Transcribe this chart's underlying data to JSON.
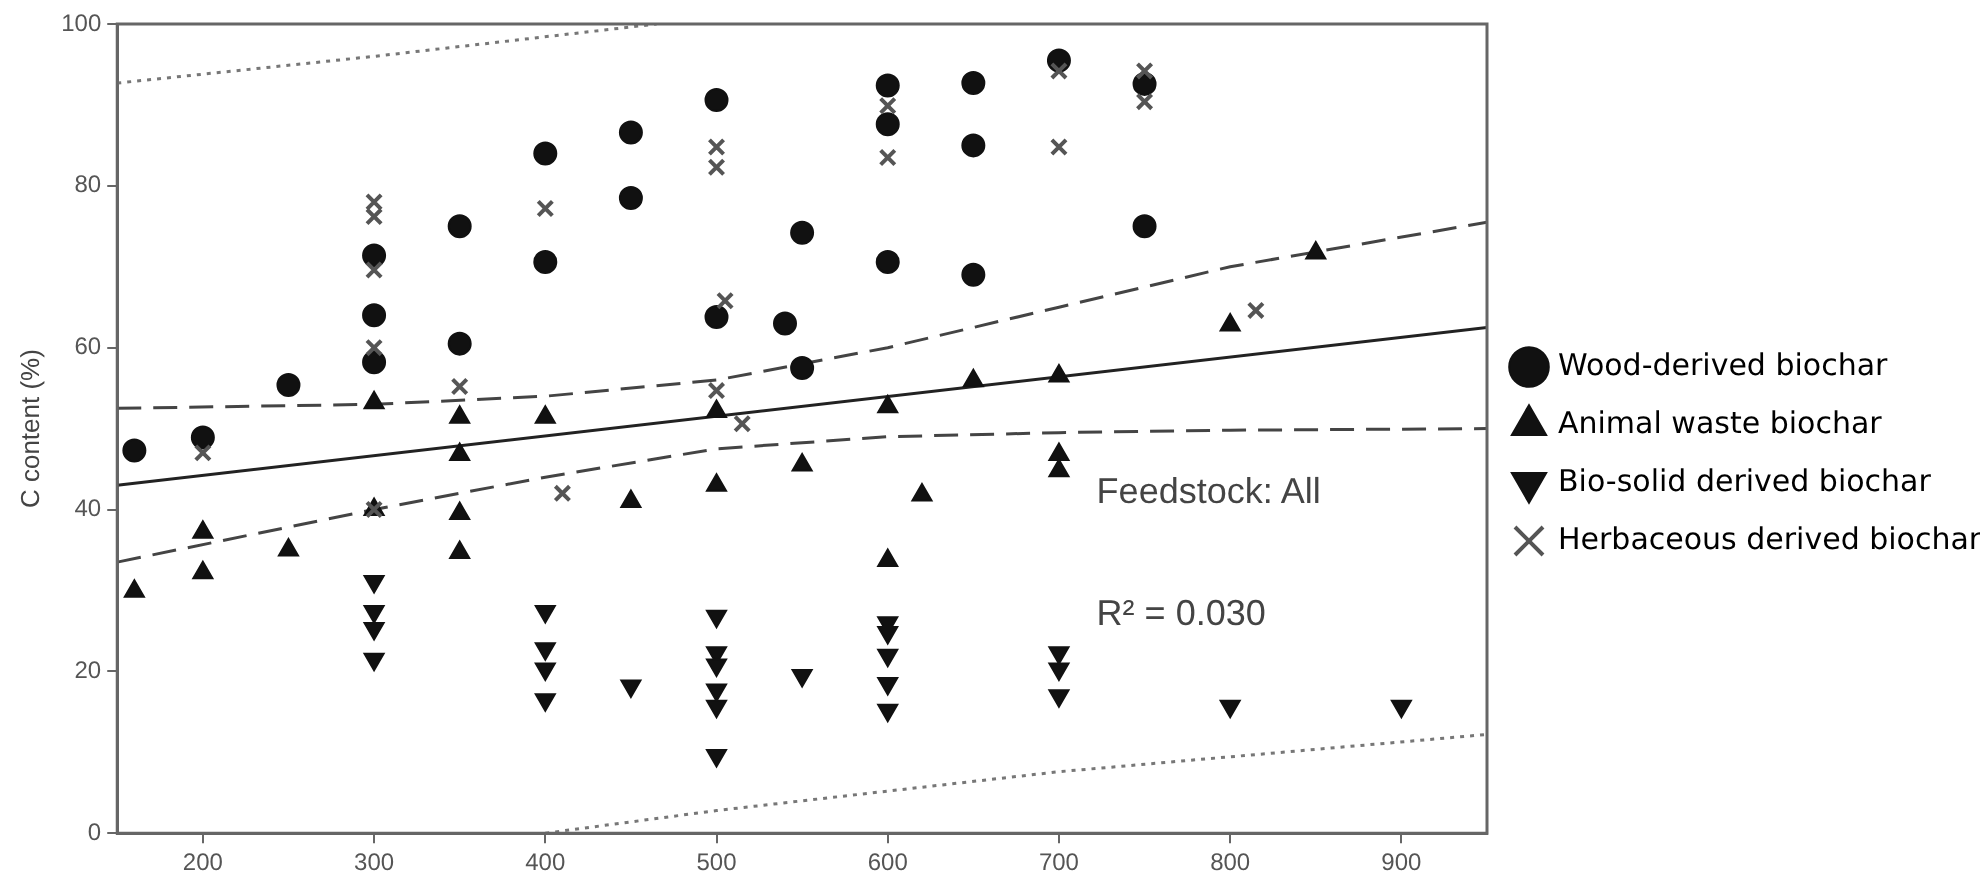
{
  "chart_data": {
    "type": "scatter",
    "ylabel": "C content (%)",
    "xlim": [
      150,
      950
    ],
    "xticks": [
      200,
      300,
      400,
      500,
      600,
      700,
      800,
      900
    ],
    "ylim": [
      0,
      100
    ],
    "yticks": [
      0,
      20,
      40,
      60,
      80,
      100
    ],
    "grid": false,
    "legend": "right",
    "annotations": [
      "Feedstock: All",
      "R² = 0.030"
    ],
    "series": [
      {
        "name": "Wood-derived biochar",
        "color": "#111111",
        "marker": "circle",
        "x": [
          160,
          200,
          250,
          300,
          300,
          300,
          350,
          350,
          400,
          400,
          450,
          450,
          500,
          500,
          540,
          550,
          550,
          600,
          600,
          600,
          650,
          650,
          650,
          700,
          750,
          750
        ],
        "values": [
          47.3,
          48.9,
          55.4,
          71.4,
          64,
          58.2,
          75,
          60.5,
          84,
          70.6,
          86.6,
          78.5,
          90.6,
          63.8,
          63,
          74.2,
          57.5,
          92.4,
          87.6,
          70.6,
          92.7,
          85,
          69,
          95.5,
          92.6,
          75
        ]
      },
      {
        "name": "Animal waste biochar",
        "color": "#111111",
        "marker": "triangle",
        "x": [
          160,
          200,
          200,
          250,
          300,
          300,
          350,
          350,
          350,
          350,
          400,
          450,
          500,
          500,
          550,
          600,
          600,
          620,
          650,
          700,
          700,
          700,
          800,
          850
        ],
        "values": [
          29.9,
          37.2,
          32.2,
          35,
          40,
          53.2,
          51.4,
          46.8,
          39.5,
          34.7,
          51.4,
          41,
          43,
          52.1,
          45.5,
          52.7,
          33.7,
          41.8,
          55.9,
          56.5,
          46.8,
          44.8,
          62.8,
          71.7
        ]
      },
      {
        "name": "Bio-solid derived biochar",
        "color": "#111111",
        "marker": "triangle-down",
        "x": [
          300,
          300,
          300,
          300,
          400,
          400,
          400,
          400,
          450,
          500,
          500,
          500,
          500,
          500,
          500,
          550,
          600,
          600,
          600,
          600,
          600,
          700,
          700,
          700,
          800,
          900
        ],
        "values": [
          31.1,
          27.4,
          25.3,
          21.5,
          27.4,
          22.8,
          20.3,
          16.5,
          18.2,
          26.8,
          22.3,
          20.8,
          17.7,
          15.7,
          9.6,
          19.5,
          26,
          24.8,
          22,
          18.5,
          15.2,
          22.3,
          20.3,
          17,
          15.7,
          15.7
        ]
      },
      {
        "name": "Herbaceous derived biochar",
        "color": "#555555",
        "marker": "cross",
        "x": [
          200,
          300,
          300,
          300,
          300,
          300,
          350,
          400,
          410,
          500,
          500,
          505,
          500,
          515,
          600,
          600,
          700,
          700,
          750,
          750,
          815
        ],
        "values": [
          47,
          78,
          76.2,
          69.6,
          60,
          40,
          55.2,
          77.2,
          42,
          84.8,
          82.3,
          65.8,
          54.7,
          50.6,
          89.9,
          83.5,
          94.2,
          84.8,
          94.2,
          90.4,
          64.6
        ]
      },
      {
        "type": "line",
        "color": "#222222",
        "line_style": "solid",
        "marker": "none",
        "x": [
          150,
          950
        ],
        "values": [
          43,
          62.5
        ]
      },
      {
        "type": "line",
        "color": "#444444",
        "line_style": "dashed",
        "marker": "none",
        "x": [
          150,
          300,
          400,
          500,
          600,
          700,
          800,
          950
        ],
        "values": [
          52.5,
          53,
          54,
          56,
          60,
          65,
          70,
          75.5
        ]
      },
      {
        "type": "line",
        "color": "#444444",
        "line_style": "dashed",
        "marker": "none",
        "x": [
          150,
          300,
          400,
          500,
          600,
          700,
          800,
          950
        ],
        "values": [
          33.5,
          40,
          44,
          47.5,
          49,
          49.5,
          49.8,
          50
        ]
      },
      {
        "type": "line",
        "color": "#777777",
        "line_style": "dotted",
        "marker": "none",
        "x": [
          150,
          300,
          465
        ],
        "values": [
          92.7,
          96,
          100
        ]
      },
      {
        "type": "line",
        "color": "#777777",
        "line_style": "dotted",
        "marker": "none",
        "x": [
          400,
          500,
          700,
          950
        ],
        "values": [
          0,
          2.8,
          7.6,
          12.2
        ]
      }
    ]
  }
}
